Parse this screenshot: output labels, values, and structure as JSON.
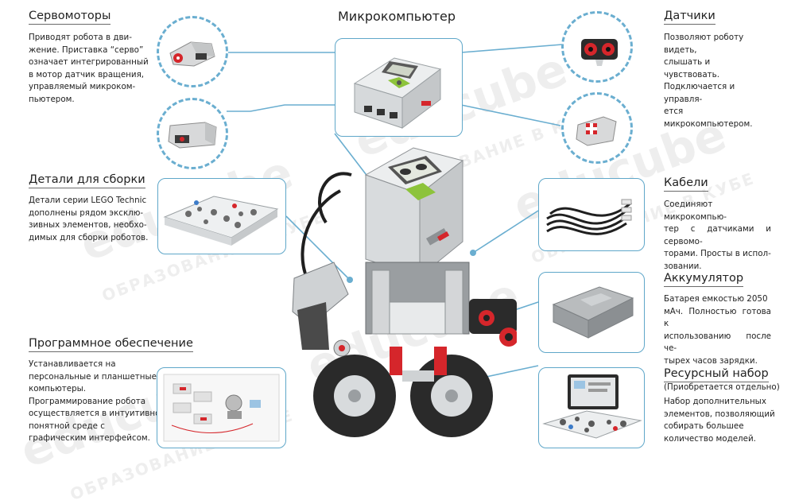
{
  "title": "Микрокомпьютер",
  "watermark": {
    "brand": "educube",
    "tagline": "ОБРАЗОВАНИЕ В КУБЕ"
  },
  "servomotors": {
    "heading": "Сервомоторы",
    "lines": [
      "Приводят робота в дви-",
      "жение. Приставка “серво”",
      "означает интегрированный",
      "в мотор датчик вращения,",
      "управляемый микроком-",
      "пьютером."
    ]
  },
  "parts": {
    "heading": "Детали для сборки",
    "lines": [
      "Детали серии LEGO Technic",
      "дополнены рядом эксклю-",
      "зивных элементов, необхо-",
      "димых для сборки роботов."
    ]
  },
  "software": {
    "heading": "Программное обеспечение",
    "lines": [
      "Устанавливается на",
      "персональные и планшетные",
      "компьютеры.",
      "Программирование робота",
      "осуществляется в интуитивно",
      "понятной среде с",
      "графическим интерфейсом."
    ]
  },
  "sensors": {
    "heading": "Датчики",
    "lines": [
      "Позволяют роботу видеть,",
      "слышать и чувствовать.",
      "Подключается и управля-",
      "ется микрокомпьютером."
    ]
  },
  "cables": {
    "heading": "Кабели",
    "lines": [
      "Соединяют микрокомпью-",
      "тер с датчиками и сервомо-",
      "торами. Просты в испол-",
      "зовании."
    ]
  },
  "battery": {
    "heading": "Аккумулятор",
    "lines": [
      "Батарея емкостью 2050",
      "мАч. Полностью готова к",
      "использованию после че-",
      "тырех часов зарядки."
    ]
  },
  "resource": {
    "heading": "Ресурсный набор",
    "subheading": "(Приобретается отдельно)",
    "lines": [
      "Набор дополнительных",
      "элементов, позволяющий",
      "собирать большее",
      "количество моделей."
    ]
  },
  "brick_label": "EV3",
  "colors": {
    "accent": "#5fa7c9",
    "brick_gray": "#cfd2d4",
    "red": "#d5262b",
    "tire": "#2a2a2a"
  }
}
